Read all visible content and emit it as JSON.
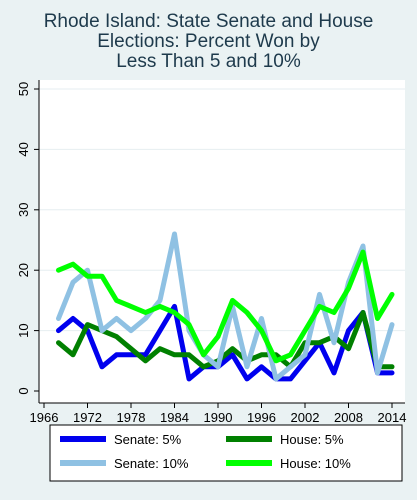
{
  "chart_data": {
    "type": "line",
    "title_lines": [
      "Rhode Island: State Senate and House",
      "Elections: Percent Won by",
      "Less Than 5 and 10%"
    ],
    "xlabel": "",
    "ylabel": "",
    "xlim": [
      1966,
      2014
    ],
    "ylim": [
      0,
      50
    ],
    "xticks": [
      "1966",
      "1972",
      "1978",
      "1984",
      "1990",
      "1996",
      "2002",
      "2008",
      "2014"
    ],
    "yticks": [
      "0",
      "10",
      "20",
      "30",
      "40",
      "50"
    ],
    "grid": true,
    "legend_position": "bottom",
    "series": [
      {
        "name": "Senate: 5%",
        "color": "#0000ee",
        "x": [
          1968,
          1970,
          1972,
          1974,
          1976,
          1978,
          1980,
          1982,
          1984,
          1986,
          1988,
          1990,
          1992,
          1994,
          1996,
          1998,
          2000,
          2002,
          2004,
          2006,
          2008,
          2010,
          2012,
          2014
        ],
        "y": [
          10,
          12,
          10,
          4,
          6,
          6,
          6,
          10,
          14,
          2,
          4,
          4,
          6,
          2,
          4,
          2,
          2,
          5,
          8,
          3,
          10,
          13,
          3,
          3
        ]
      },
      {
        "name": "House: 5%",
        "color": "#008000",
        "x": [
          1968,
          1970,
          1972,
          1974,
          1976,
          1978,
          1980,
          1982,
          1984,
          1986,
          1988,
          1990,
          1992,
          1994,
          1996,
          1998,
          2000,
          2002,
          2004,
          2006,
          2008,
          2010,
          2012,
          2014
        ],
        "y": [
          8,
          6,
          11,
          10,
          9,
          7,
          5,
          7,
          6,
          6,
          4,
          5,
          7,
          5,
          6,
          6,
          4,
          8,
          8,
          9,
          7,
          13,
          4,
          4
        ]
      },
      {
        "name": "Senate: 10%",
        "color": "#8fc1e3",
        "x": [
          1968,
          1970,
          1972,
          1974,
          1976,
          1978,
          1980,
          1982,
          1984,
          1986,
          1988,
          1990,
          1992,
          1994,
          1996,
          1998,
          2000,
          2002,
          2004,
          2006,
          2008,
          2010,
          2012,
          2014
        ],
        "y": [
          12,
          18,
          20,
          10,
          12,
          10,
          12,
          15,
          26,
          10,
          6,
          4,
          14,
          4,
          12,
          2,
          4,
          6,
          16,
          8,
          18,
          24,
          3,
          11
        ]
      },
      {
        "name": "House: 10%",
        "color": "#00ff00",
        "x": [
          1968,
          1970,
          1972,
          1974,
          1976,
          1978,
          1980,
          1982,
          1984,
          1986,
          1988,
          1990,
          1992,
          1994,
          1996,
          1998,
          2000,
          2002,
          2004,
          2006,
          2008,
          2010,
          2012,
          2014
        ],
        "y": [
          20,
          21,
          19,
          19,
          15,
          14,
          13,
          14,
          13,
          11,
          6,
          9,
          15,
          13,
          10,
          5,
          6,
          10,
          14,
          13,
          17,
          23,
          12,
          16
        ]
      }
    ],
    "legend_order": [
      "Senate: 5%",
      "House: 5%",
      "Senate: 10%",
      "House: 10%"
    ],
    "colors": {
      "background": "#eaf2f3",
      "plot_background": "#ffffff",
      "title": "#1e3a4c",
      "grid": "#e6eef0",
      "axis": "#000000"
    }
  }
}
